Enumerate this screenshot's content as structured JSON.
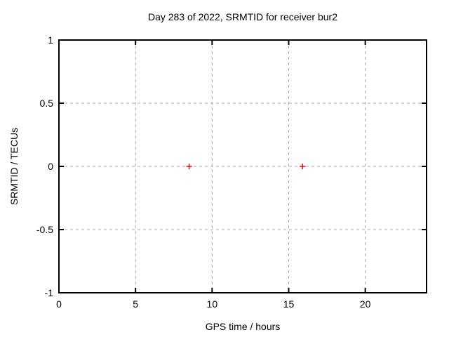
{
  "chart_data": {
    "type": "scatter",
    "title": "Day 283 of 2022, SRMTID for receiver bur2",
    "xlabel": "GPS time / hours",
    "ylabel": "SRMTID / TECUs",
    "xlim": [
      0,
      24
    ],
    "ylim": [
      -1,
      1
    ],
    "xticks": [
      0,
      5,
      10,
      15,
      20
    ],
    "xtick_labels": [
      "0",
      "5",
      "10",
      "15",
      "20"
    ],
    "yticks": [
      -1,
      -0.5,
      0,
      0.5,
      1
    ],
    "ytick_labels": [
      "-1",
      "-0.5",
      "0",
      "0.5",
      "1"
    ],
    "grid": true,
    "legend": "none",
    "background_color": "#ffffff",
    "axis_color": "#000000",
    "grid_color": "#a8a8a8",
    "series": [
      {
        "name": "SRMTID",
        "marker": "plus",
        "color": "#ff0000",
        "points": [
          {
            "x": 8.5,
            "y": 0
          },
          {
            "x": 15.9,
            "y": 0
          }
        ]
      }
    ]
  }
}
